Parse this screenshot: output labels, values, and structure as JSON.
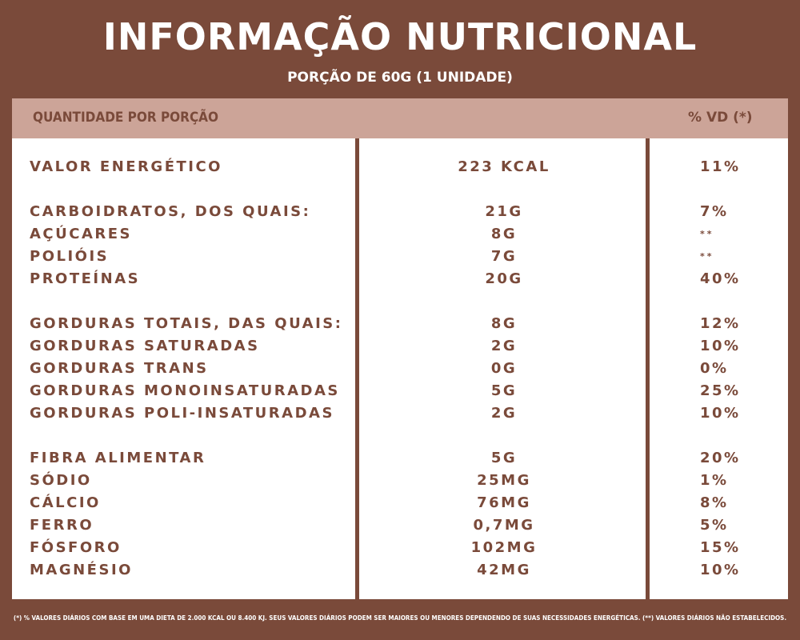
{
  "header": {
    "title": "INFORMAÇÃO NUTRICIONAL",
    "subtitle": "PORÇÃO DE 60G (1 UNIDADE)"
  },
  "table": {
    "col_left": "QUANTIDADE POR PORÇÃO",
    "col_right": "% VD (*)",
    "rows": [
      {
        "name": "VALOR ENERGÉTICO",
        "qty": "223 KCAL",
        "vd": "11%"
      },
      {
        "name": "CARBOIDRATOS, DOS QUAIS:",
        "qty": "21G",
        "vd": "7%"
      },
      {
        "name": "AÇÚCARES",
        "qty": "8G",
        "vd": "**"
      },
      {
        "name": "POLIÓIS",
        "qty": "7G",
        "vd": "**"
      },
      {
        "name": "PROTEÍNAS",
        "qty": "20G",
        "vd": "40%"
      },
      {
        "name": "GORDURAS TOTAIS, DAS QUAIS:",
        "qty": "8G",
        "vd": "12%"
      },
      {
        "name": "GORDURAS SATURADAS",
        "qty": "2G",
        "vd": "10%"
      },
      {
        "name": "GORDURAS TRANS",
        "qty": "0G",
        "vd": "0%"
      },
      {
        "name": "GORDURAS MONOINSATURADAS",
        "qty": "5G",
        "vd": "25%"
      },
      {
        "name": "GORDURAS POLI-INSATURADAS",
        "qty": "2G",
        "vd": "10%"
      },
      {
        "name": "FIBRA ALIMENTAR",
        "qty": "5G",
        "vd": "20%"
      },
      {
        "name": "SÓDIO",
        "qty": "25MG",
        "vd": "1%"
      },
      {
        "name": "CÁLCIO",
        "qty": "76MG",
        "vd": "8%"
      },
      {
        "name": "FERRO",
        "qty": "0,7MG",
        "vd": "5%"
      },
      {
        "name": "FÓSFORO",
        "qty": "102MG",
        "vd": "15%"
      },
      {
        "name": "MAGNÉSIO",
        "qty": "42MG",
        "vd": "10%"
      }
    ]
  },
  "footnote": "(*) % VALORES DIÁRIOS COM BASE EM UMA DIETA DE 2.000 KCAL OU 8.400 KJ. SEUS VALORES DIÁRIOS PODEM SER MAIORES OU MENORES DEPENDENDO DE SUAS NECESSIDADES ENERGÉTICAS. (**) VALORES DIÁRIOS NÃO ESTABELECIDOS.",
  "colors": {
    "brand_brown": "#7a4a3a",
    "header_band": "#cca498",
    "panel": "#ffffff"
  }
}
